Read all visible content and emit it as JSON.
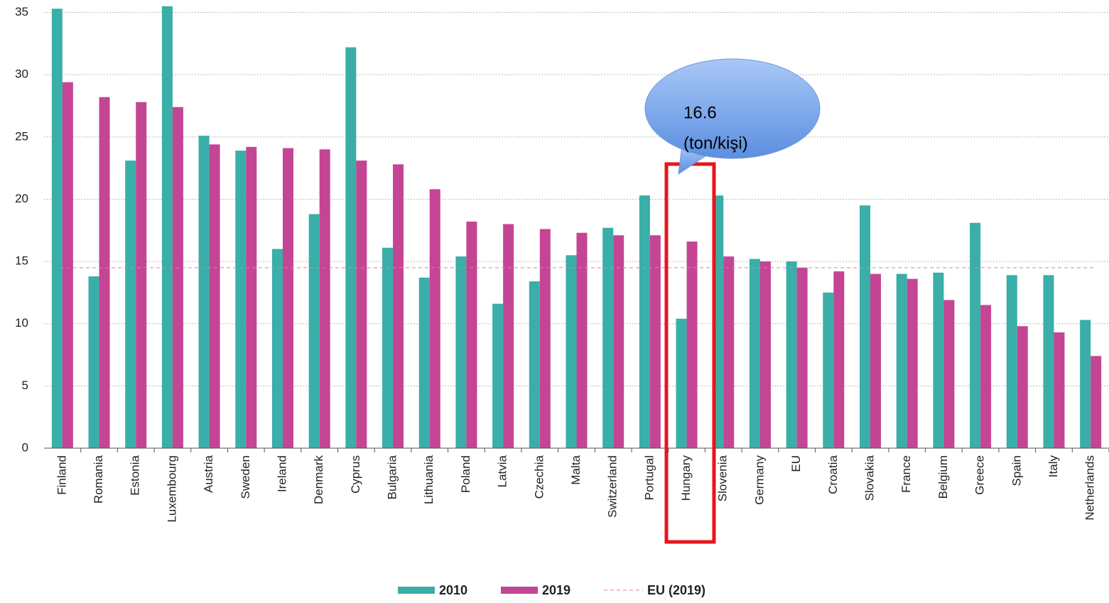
{
  "chart_data": {
    "type": "bar",
    "categories": [
      "Finland",
      "Romania",
      "Estonia",
      "Luxembourg",
      "Austria",
      "Sweden",
      "Ireland",
      "Denmark",
      "Cyprus",
      "Bulgaria",
      "Lithuania",
      "Poland",
      "Latvia",
      "Czechia",
      "Malta",
      "Switzerland",
      "Portugal",
      "Hungary",
      "Slovenia",
      "Germany",
      "EU",
      "Croatia",
      "Slovakia",
      "France",
      "Belgium",
      "Greece",
      "Spain",
      "Italy",
      "Netherlands"
    ],
    "series": [
      {
        "name": "2010",
        "color": "#3aaea8",
        "values": [
          35.3,
          13.8,
          23.1,
          35.5,
          25.1,
          23.9,
          16.0,
          18.8,
          32.2,
          16.1,
          13.7,
          15.4,
          11.6,
          13.4,
          15.5,
          17.7,
          20.3,
          10.4,
          20.3,
          15.2,
          15.0,
          12.5,
          19.5,
          14.0,
          14.1,
          18.1,
          13.9,
          13.9,
          10.3
        ]
      },
      {
        "name": "2019",
        "color": "#c44594",
        "values": [
          29.4,
          28.2,
          27.8,
          27.4,
          24.4,
          24.2,
          24.1,
          24.0,
          23.1,
          22.8,
          20.8,
          18.2,
          18.0,
          17.6,
          17.3,
          17.1,
          17.1,
          16.6,
          15.4,
          15.0,
          14.5,
          14.2,
          14.0,
          13.6,
          11.9,
          11.5,
          9.8,
          9.3,
          7.4
        ]
      }
    ],
    "reference_line": {
      "name": "EU (2019)",
      "value": 14.5,
      "color": "#e07ab8"
    },
    "annotation": [
      "16.6",
      "(ton/kişi)"
    ],
    "ylim": [
      0,
      36
    ],
    "yticks": [
      0,
      5,
      10,
      15,
      20,
      25,
      30,
      35
    ],
    "grid": true
  }
}
